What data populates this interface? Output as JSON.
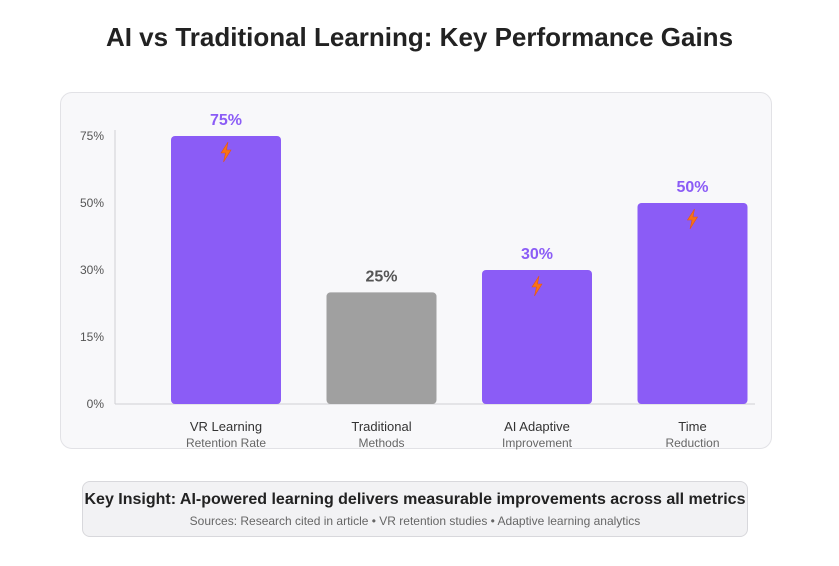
{
  "title": "AI vs Traditional Learning: Key Performance Gains",
  "colors": {
    "accent": "#8b5cf6",
    "traditional": "#a0a0a0",
    "bolt": "#f97316",
    "label_accent": "#8b5cf6",
    "label_traditional": "#555555"
  },
  "insight": {
    "main": "Key Insight: AI-powered learning delivers measurable improvements across all metrics",
    "sources": "Sources: Research cited in article • VR retention studies • Adaptive learning analytics"
  },
  "chart_data": {
    "type": "bar",
    "categories": [
      "VR Learning",
      "Traditional",
      "AI Adaptive",
      "Time"
    ],
    "subcategories": [
      "Retention Rate",
      "Methods",
      "Improvement",
      "Reduction"
    ],
    "values": [
      75,
      25,
      30,
      50
    ],
    "value_labels": [
      "75%",
      "25%",
      "30%",
      "50%"
    ],
    "highlight": [
      true,
      false,
      true,
      true
    ],
    "yticks": [
      {
        "value": 0,
        "label": "0%"
      },
      {
        "value": 15,
        "label": "15%"
      },
      {
        "value": 30,
        "label": "30%"
      },
      {
        "value": 50,
        "label": "50%"
      },
      {
        "value": 75,
        "label": "75%"
      }
    ],
    "grid": false,
    "title": "",
    "xlabel": "",
    "ylabel": ""
  }
}
